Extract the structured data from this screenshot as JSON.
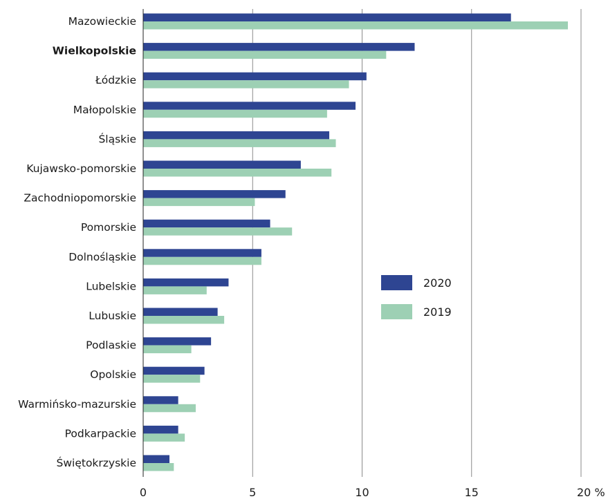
{
  "chart_data": {
    "type": "bar",
    "orientation": "horizontal",
    "categories": [
      "Mazowieckie",
      "Wielkopolskie",
      "Łódzkie",
      "Małopolskie",
      "Śląskie",
      "Kujawsko-pomorskie",
      "Zachodniopomorskie",
      "Pomorskie",
      "Dolnośląskie",
      "Lubelskie",
      "Lubuskie",
      "Podlaskie",
      "Opolskie",
      "Warmińsko-mazurskie",
      "Podkarpackie",
      "Świętokrzyskie"
    ],
    "highlighted_category": "Wielkopolskie",
    "series": [
      {
        "name": "2020",
        "color": "#2e4592",
        "values": [
          16.8,
          12.4,
          10.2,
          9.7,
          8.5,
          7.2,
          6.5,
          5.8,
          5.4,
          3.9,
          3.4,
          3.1,
          2.8,
          1.6,
          1.6,
          1.2
        ]
      },
      {
        "name": "2019",
        "color": "#9dd0b4",
        "values": [
          19.4,
          11.1,
          9.4,
          8.4,
          8.8,
          8.6,
          5.1,
          6.8,
          5.4,
          2.9,
          3.7,
          2.2,
          2.6,
          2.4,
          1.9,
          1.4
        ]
      }
    ],
    "x_ticks": [
      "0",
      "5",
      "10",
      "15",
      "20 %"
    ],
    "xlim": [
      0,
      20
    ],
    "grid": true,
    "legend_position": "right-middle",
    "title": "",
    "xlabel": "",
    "ylabel": ""
  }
}
